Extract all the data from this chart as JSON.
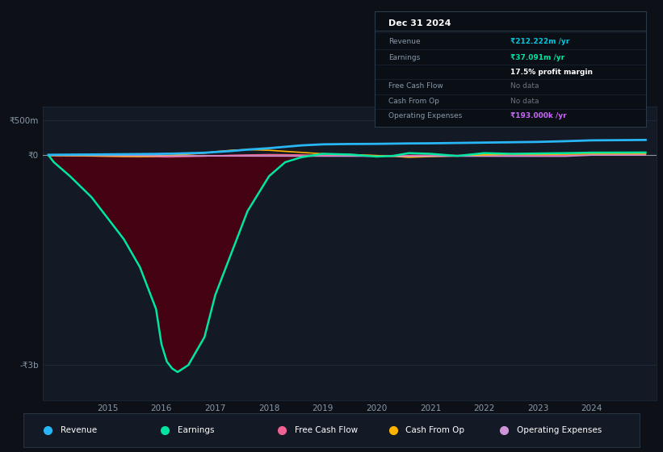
{
  "bg_color": "#0d1117",
  "plot_bg_color": "#131a25",
  "grid_color": "#253545",
  "title_date": "Dec 31 2024",
  "info_box": {
    "Revenue": {
      "value": "₹212.222m /yr",
      "color": "#00c8e0"
    },
    "Earnings": {
      "value": "₹37.091m /yr",
      "color": "#00e5a0"
    },
    "Earnings_sub": {
      "value": "17.5% profit margin",
      "color": "#ffffff"
    },
    "Free Cash Flow": {
      "value": "No data",
      "color": "#6b7280"
    },
    "Cash From Op": {
      "value": "No data",
      "color": "#6b7280"
    },
    "Operating Expenses": {
      "value": "₹193.000k /yr",
      "color": "#cc66ff"
    }
  },
  "ylim": [
    -3500000000,
    700000000
  ],
  "ytick_positions": [
    500000000,
    0,
    -3000000000
  ],
  "ytick_labels": [
    "₹500m",
    "₹0",
    "-₹3b"
  ],
  "xlim": [
    2013.8,
    2025.2
  ],
  "xtick_years": [
    2015,
    2016,
    2017,
    2018,
    2019,
    2020,
    2021,
    2022,
    2023,
    2024
  ],
  "years": [
    2013.9,
    2014.0,
    2014.3,
    2014.7,
    2015.0,
    2015.3,
    2015.6,
    2015.9,
    2016.0,
    2016.1,
    2016.2,
    2016.3,
    2016.5,
    2016.8,
    2017.0,
    2017.3,
    2017.6,
    2018.0,
    2018.3,
    2018.6,
    2019.0,
    2019.5,
    2020.0,
    2020.3,
    2020.6,
    2021.0,
    2021.5,
    2022.0,
    2022.5,
    2023.0,
    2023.5,
    2024.0,
    2024.5,
    2025.0
  ],
  "earnings": [
    0,
    -100000000,
    -300000000,
    -600000000,
    -900000000,
    -1200000000,
    -1600000000,
    -2200000000,
    -2700000000,
    -2950000000,
    -3050000000,
    -3100000000,
    -3000000000,
    -2600000000,
    -2000000000,
    -1400000000,
    -800000000,
    -300000000,
    -100000000,
    -30000000,
    20000000,
    10000000,
    -20000000,
    -10000000,
    30000000,
    20000000,
    -10000000,
    30000000,
    20000000,
    25000000,
    30000000,
    37091000,
    38000000,
    39000000
  ],
  "revenue": [
    5000000,
    6000000,
    8000000,
    10000000,
    12000000,
    14000000,
    16000000,
    18000000,
    20000000,
    21000000,
    22000000,
    24000000,
    28000000,
    35000000,
    45000000,
    60000000,
    80000000,
    100000000,
    120000000,
    140000000,
    155000000,
    160000000,
    162000000,
    165000000,
    168000000,
    170000000,
    175000000,
    180000000,
    185000000,
    190000000,
    200000000,
    212222000,
    215000000,
    218000000
  ],
  "free_cash_flow": [
    -5000000,
    -8000000,
    -10000000,
    -12000000,
    -15000000,
    -18000000,
    -20000000,
    -22000000,
    -25000000,
    -26000000,
    -25000000,
    -23000000,
    -20000000,
    -15000000,
    -8000000,
    0,
    5000000,
    10000000,
    8000000,
    5000000,
    -2000000,
    3000000,
    -5000000,
    -8000000,
    -3000000,
    2000000,
    -3000000,
    5000000,
    3000000,
    0,
    2000000,
    5000000,
    5000000,
    5000000
  ],
  "cash_from_op": [
    -3000000,
    -5000000,
    -8000000,
    -12000000,
    -15000000,
    -18000000,
    -20000000,
    -15000000,
    -10000000,
    -5000000,
    0,
    5000000,
    15000000,
    30000000,
    50000000,
    70000000,
    80000000,
    70000000,
    55000000,
    40000000,
    20000000,
    10000000,
    -5000000,
    -15000000,
    -30000000,
    -20000000,
    -10000000,
    5000000,
    15000000,
    10000000,
    15000000,
    20000000,
    20000000,
    20000000
  ],
  "operating_expenses": [
    -2000000,
    -3000000,
    -4000000,
    -5000000,
    -6000000,
    -7000000,
    -8000000,
    -9000000,
    -10000000,
    -10000000,
    -10500000,
    -11000000,
    -11500000,
    -12000000,
    -12500000,
    -13000000,
    -13500000,
    -14000000,
    -14500000,
    -15000000,
    -15000000,
    -15500000,
    -16000000,
    -16000000,
    -16000000,
    -15000000,
    -15500000,
    -16000000,
    -16500000,
    -17000000,
    -17000000,
    -193000,
    -193000,
    -193000
  ],
  "revenue_color": "#29b6f6",
  "earnings_color": "#00e5a0",
  "fcf_color": "#f06292",
  "cfo_color": "#ffb300",
  "opex_color": "#ce93d8",
  "fill_color_neg": "#4a0012",
  "fill_color_pos": "#0a3020",
  "legend_items": [
    {
      "label": "Revenue",
      "color": "#29b6f6"
    },
    {
      "label": "Earnings",
      "color": "#00e5a0"
    },
    {
      "label": "Free Cash Flow",
      "color": "#f06292"
    },
    {
      "label": "Cash From Op",
      "color": "#ffb300"
    },
    {
      "label": "Operating Expenses",
      "color": "#ce93d8"
    }
  ]
}
